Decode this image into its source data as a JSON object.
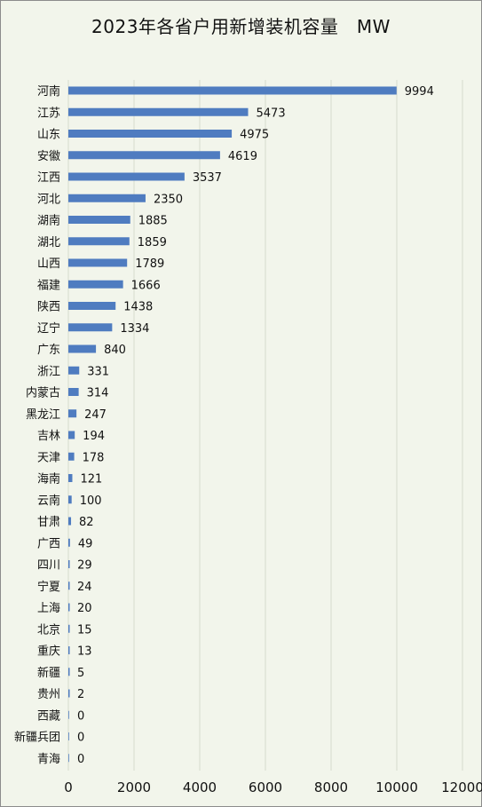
{
  "chart_data": {
    "type": "bar",
    "orientation": "horizontal",
    "title": "2023年各省户用新增装机容量　MW",
    "categories": [
      "河南",
      "江苏",
      "山东",
      "安徽",
      "江西",
      "河北",
      "湖南",
      "湖北",
      "山西",
      "福建",
      "陕西",
      "辽宁",
      "广东",
      "浙江",
      "内蒙古",
      "黑龙江",
      "吉林",
      "天津",
      "海南",
      "云南",
      "甘肃",
      "广西",
      "四川",
      "宁夏",
      "上海",
      "北京",
      "重庆",
      "新疆",
      "贵州",
      "西藏",
      "新疆兵团",
      "青海"
    ],
    "values": [
      9994,
      5473,
      4975,
      4619,
      3537,
      2350,
      1885,
      1859,
      1789,
      1666,
      1438,
      1334,
      840,
      331,
      314,
      247,
      194,
      178,
      121,
      100,
      82,
      49,
      29,
      24,
      20,
      15,
      13,
      5,
      2,
      0,
      0,
      0
    ],
    "xlim": [
      0,
      12000
    ],
    "xticks": [
      0,
      2000,
      4000,
      6000,
      8000,
      10000,
      12000
    ],
    "xtick_labels": [
      "0",
      "2000",
      "4000",
      "6000",
      "8000",
      "10000",
      "12000"
    ],
    "grid": "vertical",
    "bar_color": "#4f7cc0"
  }
}
